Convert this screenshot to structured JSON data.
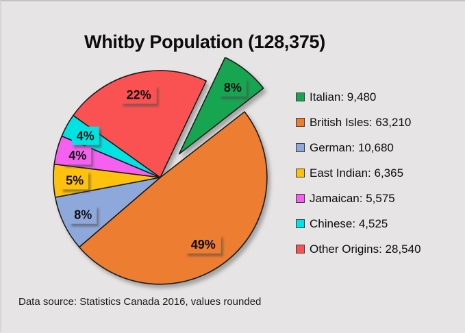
{
  "page": {
    "background_color": "#e6e4e5"
  },
  "chart_data": {
    "type": "pie",
    "title": "Whitby Population (128,375)",
    "total": 128375,
    "total_label": "128,375",
    "source_note": "Data source: Statistics Canada 2016, values rounded",
    "legend_position": "right",
    "slices": [
      {
        "name": "Italian",
        "value": 9480,
        "value_label": "9,480",
        "legend_label": "Italian: 9,480",
        "pct_label": "8%",
        "color": "#18a551",
        "exploded": true
      },
      {
        "name": "British Isles",
        "value": 63210,
        "value_label": "63,210",
        "legend_label": "British Isles: 63,210",
        "pct_label": "49%",
        "color": "#ed7d31",
        "exploded": false
      },
      {
        "name": "German",
        "value": 10680,
        "value_label": "10,680",
        "legend_label": "German: 10,680",
        "pct_label": "8%",
        "color": "#8fa8dc",
        "exploded": false
      },
      {
        "name": "East Indian",
        "value": 6365,
        "value_label": "6,365",
        "legend_label": "East Indian: 6,365",
        "pct_label": "5%",
        "color": "#fec10d",
        "exploded": false
      },
      {
        "name": "Jamaican",
        "value": 5575,
        "value_label": "5,575",
        "legend_label": "Jamaican: 5,575",
        "pct_label": "4%",
        "color": "#f660f0",
        "exploded": false
      },
      {
        "name": "Chinese",
        "value": 4525,
        "value_label": "4,525",
        "legend_label": "Chinese: 4,525",
        "pct_label": "4%",
        "color": "#00e3e3",
        "exploded": false
      },
      {
        "name": "Other Origins",
        "value": 28540,
        "value_label": "28,540",
        "legend_label": "Other Origins: 28,540",
        "pct_label": "22%",
        "color": "#fa5252",
        "exploded": false
      }
    ],
    "outline_color": "#1b1b1b",
    "text_color": "#0d0d0d"
  }
}
